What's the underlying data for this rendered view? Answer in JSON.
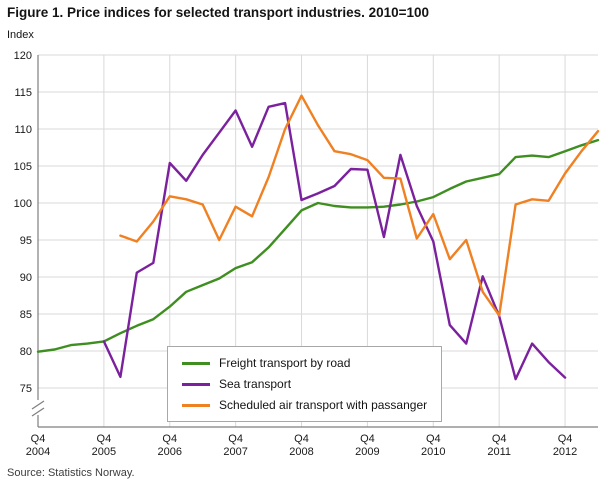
{
  "page": {
    "title": "Figure 1. Price indices for selected transport industries. 2010=100",
    "y_axis_unit_label": "Index",
    "source": "Source: Statistics Norway."
  },
  "colors": {
    "background": "#ffffff",
    "grid": "#d9d9d9",
    "axis": "#7f7f7f",
    "text": "#1a1a1a",
    "freight_road_green": "#3e8e20",
    "sea_purple": "#7b219e",
    "air_orange": "#f08122"
  },
  "chart_data": {
    "type": "line",
    "title": "Figure 1. Price indices for selected transport industries. 2010=100",
    "ylabel": "Index",
    "index_base": "2010=100",
    "ylim": [
      75,
      120
    ],
    "yticks": [
      75,
      80,
      85,
      90,
      95,
      100,
      105,
      110,
      115,
      120
    ],
    "y_axis_break": true,
    "grid": true,
    "x_unit": "quarter",
    "x_range": [
      "2004Q4",
      "2013Q2"
    ],
    "n_points": 35,
    "x_ticks": {
      "top_label": "Q4",
      "years": [
        "2004",
        "2005",
        "2006",
        "2007",
        "2008",
        "2009",
        "2010",
        "2011",
        "2012"
      ],
      "every_n_points": 4
    },
    "legend_position": "inside bottom center",
    "series": [
      {
        "name": "Freight transport by road",
        "color": "#3e8e20",
        "start_index": 0,
        "values": [
          79.9,
          80.2,
          80.8,
          81.0,
          81.3,
          82.4,
          83.4,
          84.3,
          86.0,
          88.0,
          88.9,
          89.8,
          91.2,
          92.0,
          94.0,
          96.5,
          99.0,
          100.0,
          99.6,
          99.4,
          99.4,
          99.5,
          99.8,
          100.2,
          100.8,
          101.9,
          102.9,
          103.4,
          103.9,
          106.2,
          106.4,
          106.2,
          107.0,
          107.8,
          108.5
        ]
      },
      {
        "name": "Sea transport",
        "color": "#7b219e",
        "start_index": 4,
        "values": [
          81.3,
          76.5,
          90.6,
          91.9,
          105.4,
          103.0,
          106.5,
          109.5,
          112.5,
          107.6,
          113.0,
          113.5,
          100.4,
          101.3,
          102.3,
          104.6,
          104.5,
          95.4,
          106.5,
          99.6,
          94.8,
          83.5,
          81.0,
          90.1,
          84.7,
          76.2,
          81.0,
          78.5,
          76.4
        ]
      },
      {
        "name": "Scheduled air transport with passanger",
        "color": "#f08122",
        "start_index": 5,
        "values": [
          95.6,
          94.8,
          97.5,
          100.9,
          100.5,
          99.8,
          95.0,
          99.5,
          98.2,
          103.5,
          110.0,
          114.5,
          110.5,
          107.0,
          106.6,
          105.8,
          103.4,
          103.3,
          95.2,
          98.5,
          92.4,
          95.0,
          88.0,
          84.8,
          99.8,
          100.5,
          100.3,
          104.0,
          107.0,
          109.7
        ]
      }
    ]
  }
}
